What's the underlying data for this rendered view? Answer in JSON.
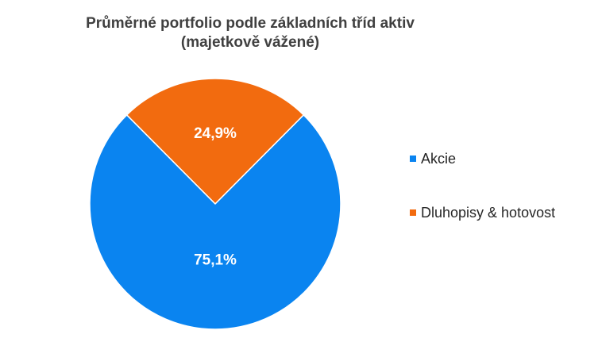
{
  "chart_data": {
    "type": "pie",
    "title": "Průměrné portfolio podle základních tříd aktiv",
    "subtitle": "(majetkově vážené)",
    "categories": [
      "Dluhopisy & hotovost",
      "Akcie"
    ],
    "values": [
      24.9,
      75.1
    ],
    "data_labels": [
      "24,9%",
      "75,1%"
    ],
    "colors": [
      "#F26B0F",
      "#0A84F0"
    ],
    "legend": {
      "position": "right",
      "entries": [
        "Akcie",
        "Dluhopisy & hotovost"
      ],
      "colors": [
        "#0A84F0",
        "#F26B0F"
      ]
    }
  }
}
